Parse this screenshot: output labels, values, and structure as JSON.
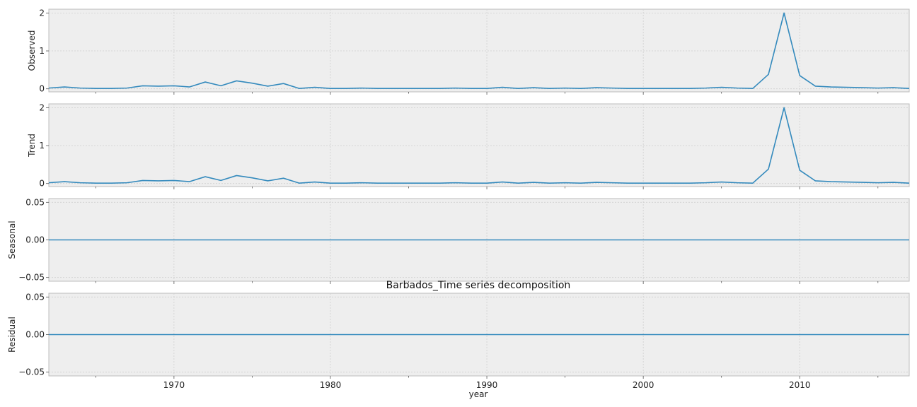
{
  "chart_data": {
    "type": "line",
    "title": "Barbados_Time series decomposition",
    "xlabel": "year",
    "x_tick_labels": [
      "1970",
      "1980",
      "1990",
      "2000",
      "2010"
    ],
    "x_ticks": [
      1970,
      1980,
      1990,
      2000,
      2010
    ],
    "xlim": [
      1962,
      2017
    ],
    "grid": true,
    "color": "#348abd",
    "x": [
      1962,
      1963,
      1964,
      1965,
      1966,
      1967,
      1968,
      1969,
      1970,
      1971,
      1972,
      1973,
      1974,
      1975,
      1976,
      1977,
      1978,
      1979,
      1980,
      1981,
      1982,
      1983,
      1984,
      1985,
      1986,
      1987,
      1988,
      1989,
      1990,
      1991,
      1992,
      1993,
      1994,
      1995,
      1996,
      1997,
      1998,
      1999,
      2000,
      2001,
      2002,
      2003,
      2004,
      2005,
      2006,
      2007,
      2008,
      2009,
      2010,
      2011,
      2012,
      2013,
      2014,
      2015,
      2016,
      2017
    ],
    "panels": [
      {
        "ylabel": "Observed",
        "ylim": [
          -0.08,
          2.1
        ],
        "y_ticks": [
          0,
          1,
          2
        ],
        "y_tick_labels": [
          "0",
          "1",
          "2"
        ],
        "values": [
          0.02,
          0.05,
          0.02,
          0.01,
          0.01,
          0.02,
          0.08,
          0.07,
          0.08,
          0.05,
          0.18,
          0.08,
          0.21,
          0.15,
          0.07,
          0.14,
          0.01,
          0.04,
          0.01,
          0.01,
          0.02,
          0.01,
          0.01,
          0.01,
          0.01,
          0.01,
          0.02,
          0.01,
          0.01,
          0.04,
          0.01,
          0.03,
          0.01,
          0.02,
          0.01,
          0.03,
          0.02,
          0.01,
          0.01,
          0.01,
          0.01,
          0.01,
          0.02,
          0.04,
          0.02,
          0.01,
          0.38,
          2.0,
          0.35,
          0.07,
          0.05,
          0.04,
          0.03,
          0.02,
          0.03,
          0.01
        ]
      },
      {
        "ylabel": "Trend",
        "ylim": [
          -0.08,
          2.1
        ],
        "y_ticks": [
          0,
          1,
          2
        ],
        "y_tick_labels": [
          "0",
          "1",
          "2"
        ],
        "values": [
          0.02,
          0.05,
          0.02,
          0.01,
          0.01,
          0.02,
          0.08,
          0.07,
          0.08,
          0.05,
          0.18,
          0.08,
          0.21,
          0.15,
          0.07,
          0.14,
          0.01,
          0.04,
          0.01,
          0.01,
          0.02,
          0.01,
          0.01,
          0.01,
          0.01,
          0.01,
          0.02,
          0.01,
          0.01,
          0.04,
          0.01,
          0.03,
          0.01,
          0.02,
          0.01,
          0.03,
          0.02,
          0.01,
          0.01,
          0.01,
          0.01,
          0.01,
          0.02,
          0.04,
          0.02,
          0.01,
          0.38,
          2.0,
          0.35,
          0.07,
          0.05,
          0.04,
          0.03,
          0.02,
          0.03,
          0.01
        ]
      },
      {
        "ylabel": "Seasonal",
        "ylim": [
          -0.055,
          0.055
        ],
        "y_ticks": [
          -0.05,
          0,
          0.05
        ],
        "y_tick_labels": [
          "−0.05",
          "0.00",
          "0.05"
        ],
        "values": [
          0,
          0,
          0,
          0,
          0,
          0,
          0,
          0,
          0,
          0,
          0,
          0,
          0,
          0,
          0,
          0,
          0,
          0,
          0,
          0,
          0,
          0,
          0,
          0,
          0,
          0,
          0,
          0,
          0,
          0,
          0,
          0,
          0,
          0,
          0,
          0,
          0,
          0,
          0,
          0,
          0,
          0,
          0,
          0,
          0,
          0,
          0,
          0,
          0,
          0,
          0,
          0,
          0,
          0,
          0,
          0
        ]
      },
      {
        "ylabel": "Residual",
        "ylim": [
          -0.055,
          0.055
        ],
        "y_ticks": [
          -0.05,
          0,
          0.05
        ],
        "y_tick_labels": [
          "−0.05",
          "0.00",
          "0.05"
        ],
        "values": [
          0,
          0,
          0,
          0,
          0,
          0,
          0,
          0,
          0,
          0,
          0,
          0,
          0,
          0,
          0,
          0,
          0,
          0,
          0,
          0,
          0,
          0,
          0,
          0,
          0,
          0,
          0,
          0,
          0,
          0,
          0,
          0,
          0,
          0,
          0,
          0,
          0,
          0,
          0,
          0,
          0,
          0,
          0,
          0,
          0,
          0,
          0,
          0,
          0,
          0,
          0,
          0,
          0,
          0,
          0,
          0
        ]
      }
    ]
  }
}
